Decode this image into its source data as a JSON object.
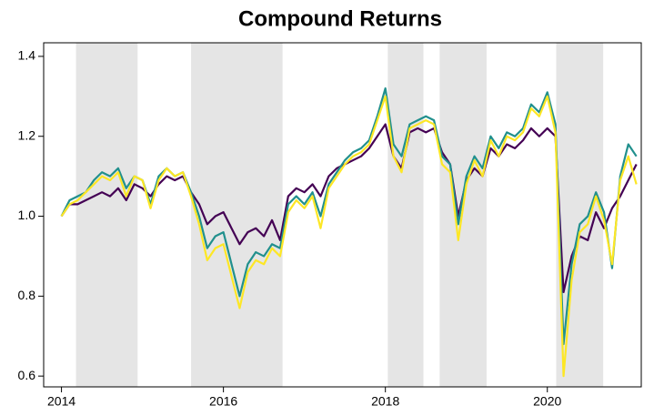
{
  "chart_data": {
    "type": "line",
    "title": "Compound Returns",
    "x": [
      2014.0,
      2014.1,
      2014.2,
      2014.3,
      2014.4,
      2014.5,
      2014.6,
      2014.7,
      2014.8,
      2014.9,
      2015.0,
      2015.1,
      2015.2,
      2015.3,
      2015.4,
      2015.5,
      2015.6,
      2015.7,
      2015.8,
      2015.9,
      2016.0,
      2016.1,
      2016.2,
      2016.3,
      2016.4,
      2016.5,
      2016.6,
      2016.7,
      2016.8,
      2016.9,
      2017.0,
      2017.1,
      2017.2,
      2017.3,
      2017.4,
      2017.5,
      2017.6,
      2017.7,
      2017.8,
      2017.9,
      2018.0,
      2018.1,
      2018.2,
      2018.3,
      2018.4,
      2018.5,
      2018.6,
      2018.7,
      2018.8,
      2018.9,
      2019.0,
      2019.1,
      2019.2,
      2019.3,
      2019.4,
      2019.5,
      2019.6,
      2019.7,
      2019.8,
      2019.9,
      2020.0,
      2020.1,
      2020.2,
      2020.3,
      2020.4,
      2020.5,
      2020.6,
      2020.7,
      2020.8,
      2020.9,
      2021.0,
      2021.1
    ],
    "series": [
      {
        "color": "#440154",
        "values": [
          1.0,
          1.03,
          1.03,
          1.04,
          1.05,
          1.06,
          1.05,
          1.07,
          1.04,
          1.08,
          1.07,
          1.05,
          1.08,
          1.1,
          1.09,
          1.1,
          1.06,
          1.03,
          0.98,
          1.0,
          1.01,
          0.97,
          0.93,
          0.96,
          0.97,
          0.95,
          0.99,
          0.94,
          1.05,
          1.07,
          1.06,
          1.08,
          1.05,
          1.1,
          1.12,
          1.13,
          1.14,
          1.15,
          1.17,
          1.2,
          1.23,
          1.15,
          1.12,
          1.21,
          1.22,
          1.21,
          1.22,
          1.16,
          1.13,
          1.0,
          1.09,
          1.12,
          1.1,
          1.17,
          1.15,
          1.18,
          1.17,
          1.19,
          1.22,
          1.2,
          1.22,
          1.2,
          0.81,
          0.9,
          0.95,
          0.94,
          1.01,
          0.97,
          1.02,
          1.05,
          1.09,
          1.13
        ]
      },
      {
        "color": "#21908d",
        "values": [
          1.0,
          1.04,
          1.05,
          1.06,
          1.09,
          1.11,
          1.1,
          1.12,
          1.07,
          1.1,
          1.09,
          1.03,
          1.1,
          1.12,
          1.1,
          1.11,
          1.06,
          1.0,
          0.92,
          0.95,
          0.96,
          0.88,
          0.8,
          0.88,
          0.91,
          0.9,
          0.93,
          0.92,
          1.03,
          1.05,
          1.03,
          1.06,
          1.0,
          1.08,
          1.11,
          1.14,
          1.16,
          1.17,
          1.19,
          1.25,
          1.32,
          1.18,
          1.15,
          1.23,
          1.24,
          1.25,
          1.24,
          1.15,
          1.13,
          0.98,
          1.1,
          1.15,
          1.12,
          1.2,
          1.17,
          1.21,
          1.2,
          1.22,
          1.28,
          1.26,
          1.31,
          1.23,
          0.68,
          0.88,
          0.98,
          1.0,
          1.06,
          1.01,
          0.87,
          1.1,
          1.18,
          1.15
        ]
      },
      {
        "color": "#fde725",
        "values": [
          1.0,
          1.03,
          1.04,
          1.06,
          1.08,
          1.1,
          1.09,
          1.11,
          1.05,
          1.1,
          1.09,
          1.02,
          1.09,
          1.12,
          1.1,
          1.11,
          1.05,
          0.98,
          0.89,
          0.92,
          0.93,
          0.85,
          0.77,
          0.86,
          0.89,
          0.88,
          0.92,
          0.9,
          1.01,
          1.04,
          1.02,
          1.05,
          0.97,
          1.07,
          1.1,
          1.13,
          1.15,
          1.16,
          1.18,
          1.24,
          1.3,
          1.15,
          1.11,
          1.22,
          1.23,
          1.24,
          1.23,
          1.13,
          1.11,
          0.94,
          1.08,
          1.14,
          1.1,
          1.19,
          1.15,
          1.2,
          1.19,
          1.21,
          1.27,
          1.25,
          1.3,
          1.21,
          0.6,
          0.84,
          0.96,
          0.98,
          1.05,
          0.99,
          0.88,
          1.09,
          1.15,
          1.08
        ]
      }
    ],
    "shaded_regions": [
      [
        2014.18,
        2014.94
      ],
      [
        2015.6,
        2016.73
      ],
      [
        2018.03,
        2018.47
      ],
      [
        2018.67,
        2019.25
      ],
      [
        2020.11,
        2020.69
      ]
    ],
    "shade_color": "#e5e5e5",
    "xlim": [
      2013.78,
      2021.16
    ],
    "xticks": [
      2014,
      2016,
      2018,
      2020
    ],
    "ylim": [
      0.573,
      1.434
    ],
    "yticks": [
      0.6,
      0.8,
      {
        "value": 1.0,
        "label": "1.0"
      },
      1.2,
      1.4
    ]
  }
}
